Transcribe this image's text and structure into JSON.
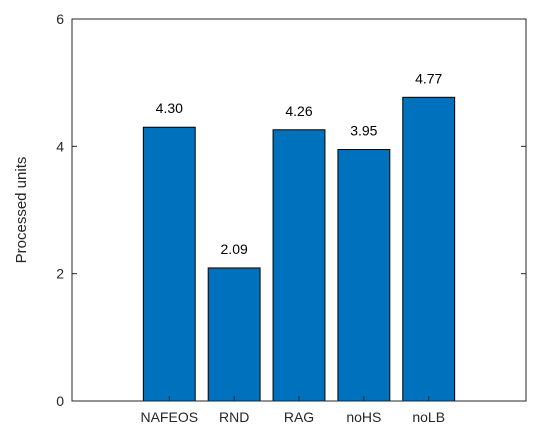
{
  "chart_data": {
    "type": "bar",
    "title": "",
    "xlabel": "",
    "ylabel": "Processed units",
    "categories": [
      "NAFEOS",
      "RND",
      "RAG",
      "noHS",
      "noLB"
    ],
    "values": [
      4.3,
      2.09,
      4.26,
      3.95,
      4.77
    ],
    "data_labels": [
      "4.30",
      "2.09",
      "4.26",
      "3.95",
      "4.77"
    ],
    "ylim": [
      0,
      6
    ],
    "yticks": [
      0,
      2,
      4,
      6
    ],
    "ytick_labels": [
      "0",
      "2",
      "4",
      "6"
    ],
    "grid": false,
    "legend": "none",
    "colors": {
      "bar": "#0072BD",
      "bar_edge": "#000000",
      "axis": "#262626"
    }
  }
}
